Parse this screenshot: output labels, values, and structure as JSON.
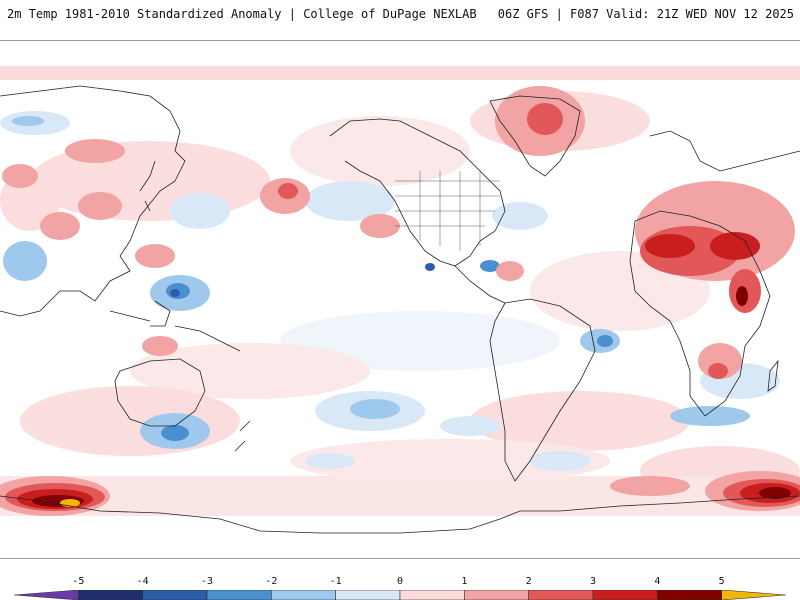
{
  "header": {
    "left_title": "2m Temp 1981-2010 Standardized Anomaly | College of DuPage NEXLAB",
    "right_title": "06Z GFS | F087 Valid: 21Z WED NOV 12 2025"
  },
  "map": {
    "projection": "equirectangular, centered on the Pacific",
    "field": "2m temperature standardized anomaly",
    "highlights": [
      {
        "region": "Antarctic coast south of Australia",
        "sign": "warm",
        "max": 5
      },
      {
        "region": "Antarctic coast south of the Indian Ocean",
        "sign": "warm",
        "max": 4
      },
      {
        "region": "Sahara / Sahel Africa",
        "sign": "warm",
        "max": 4
      },
      {
        "region": "East Africa",
        "sign": "warm",
        "max": 4
      },
      {
        "region": "Greenland",
        "sign": "warm",
        "max": 2
      },
      {
        "region": "Maritime Continent",
        "sign": "cold",
        "min": -4
      },
      {
        "region": "Southern Ocean south of Australia",
        "sign": "cold",
        "min": -2
      }
    ]
  },
  "colorbar": {
    "labels": [
      "-5",
      "-4",
      "-3",
      "-2",
      "-1",
      "0",
      "1",
      "2",
      "3",
      "4",
      "5"
    ],
    "min": -6,
    "max": 6,
    "colors": {
      "-6": "#6a3aa8",
      "-5": "#1f2e6e",
      "-4": "#2a5ea8",
      "-3": "#4a90d0",
      "-2": "#9ec8ec",
      "-1": "#d9e8f6",
      "0": "#ffffff",
      "1": "#fbdada",
      "2": "#f2a3a3",
      "3": "#e25858",
      "4": "#c81e1e",
      "5": "#800000",
      "6": "#f2b705"
    }
  }
}
